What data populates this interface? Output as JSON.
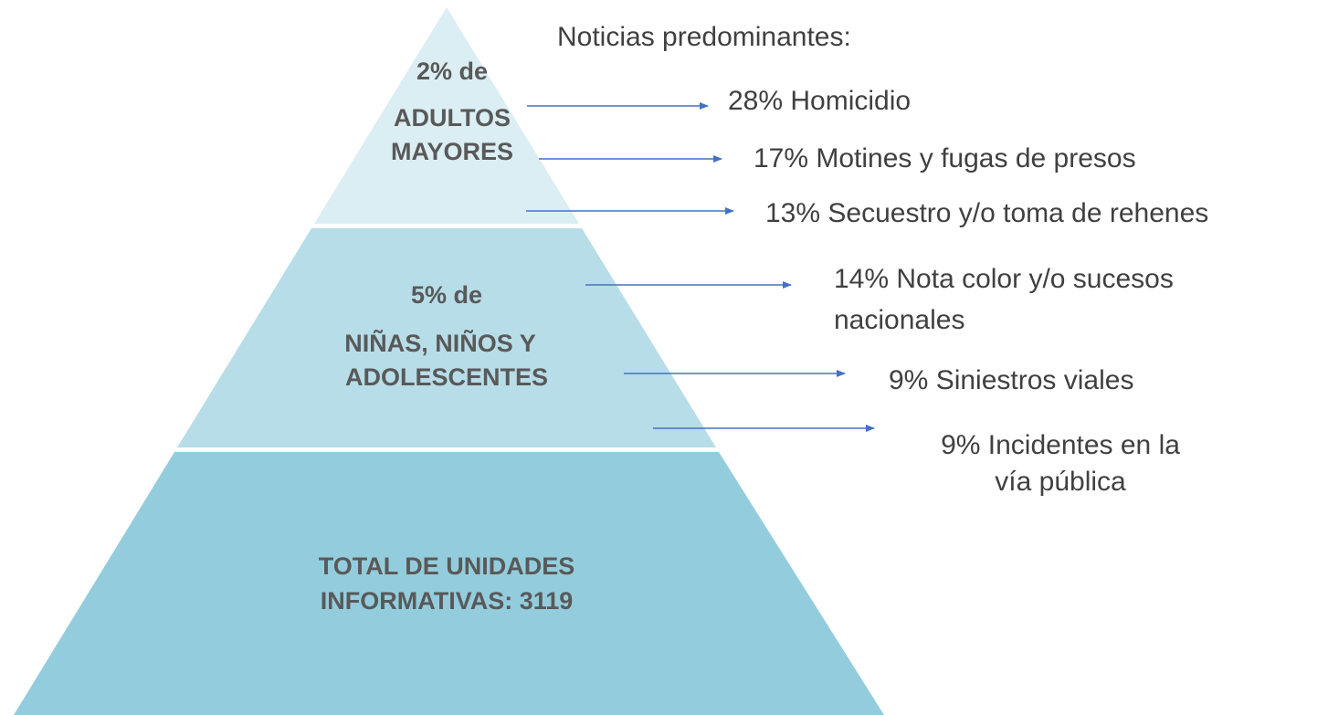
{
  "pyramid": {
    "levels": [
      {
        "lines": [
          "2% de",
          "ADULTOS",
          "MAYORES"
        ]
      },
      {
        "lines": [
          "5% de",
          "NIÑAS, NIÑOS Y",
          "ADOLESCENTES"
        ]
      },
      {
        "lines": [
          "TOTAL DE UNIDADES",
          "INFORMATIVAS: 3119"
        ]
      }
    ]
  },
  "news": {
    "title": "Noticias predominantes:",
    "items": [
      {
        "lines": [
          "28% Homicidio"
        ]
      },
      {
        "lines": [
          "17% Motines y fugas de presos"
        ]
      },
      {
        "lines": [
          "13% Secuestro y/o toma de rehenes"
        ]
      },
      {
        "lines": [
          "14% Nota color y/o sucesos",
          "nacionales"
        ]
      },
      {
        "lines": [
          "9% Siniestros viales"
        ]
      },
      {
        "lines": [
          "9% Incidentes en la",
          "vía pública"
        ]
      }
    ]
  }
}
